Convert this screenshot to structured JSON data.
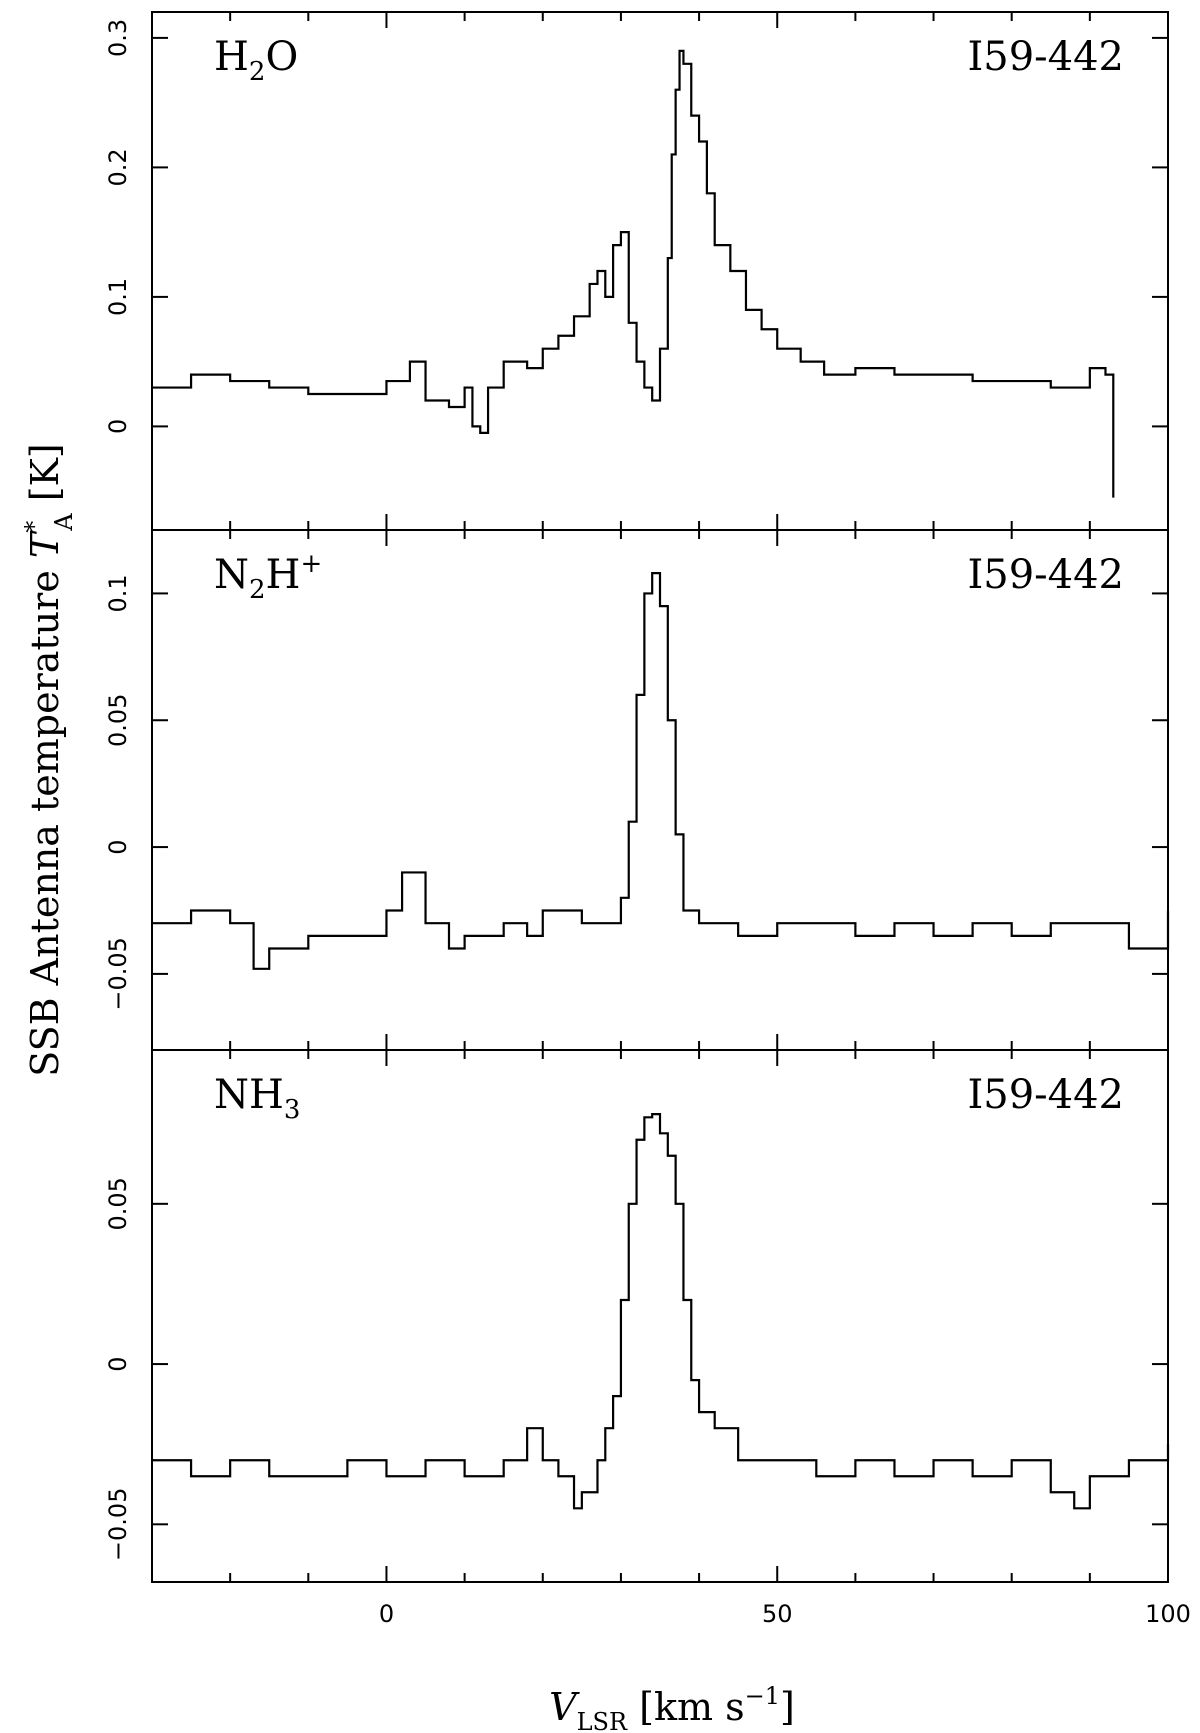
{
  "figure": {
    "ylabel_text": "SSB Antenna temperature ",
    "ylabel_symbol": "T",
    "ylabel_sup": "*",
    "ylabel_sub": "A",
    "ylabel_unit": " [K]",
    "xlabel_symbol": "V",
    "xlabel_sub": "LSR",
    "xlabel_unit_pre": " [km s",
    "xlabel_unit_sup": "−1",
    "xlabel_unit_post": "]"
  },
  "chart_data": [
    {
      "type": "line",
      "species_main": "H",
      "species_sub": "2",
      "species_tail": "O",
      "species_sup": "",
      "source": "I59-442",
      "xlim": [
        -30,
        100
      ],
      "ylim": [
        -0.08,
        0.32
      ],
      "yticks": [
        0,
        0.1,
        0.2,
        0.3
      ],
      "ytick_labels": [
        "0",
        "0.1",
        "0.2",
        "0.3"
      ],
      "x": [
        -30,
        -25,
        -20,
        -15,
        -10,
        -5,
        0,
        3,
        5,
        8,
        10,
        11,
        12,
        13,
        15,
        18,
        20,
        22,
        24,
        26,
        27,
        28,
        29,
        30,
        31,
        32,
        33,
        34,
        35,
        36,
        36.5,
        37,
        37.5,
        38,
        39,
        40,
        41,
        42,
        44,
        46,
        48,
        50,
        53,
        56,
        60,
        65,
        70,
        75,
        80,
        85,
        90,
        92,
        93
      ],
      "values": [
        0.03,
        0.04,
        0.035,
        0.03,
        0.025,
        0.025,
        0.035,
        0.05,
        0.02,
        0.015,
        0.03,
        0.0,
        -0.005,
        0.03,
        0.05,
        0.045,
        0.06,
        0.07,
        0.085,
        0.11,
        0.12,
        0.1,
        0.14,
        0.15,
        0.08,
        0.05,
        0.03,
        0.02,
        0.06,
        0.13,
        0.21,
        0.26,
        0.29,
        0.28,
        0.24,
        0.22,
        0.18,
        0.14,
        0.12,
        0.09,
        0.075,
        0.06,
        0.05,
        0.04,
        0.045,
        0.04,
        0.04,
        0.035,
        0.035,
        0.03,
        0.045,
        0.04,
        -0.055
      ]
    },
    {
      "type": "line",
      "species_main": "N",
      "species_sub": "2",
      "species_tail": "H",
      "species_sup": "+",
      "source": "I59-442",
      "xlim": [
        -30,
        100
      ],
      "ylim": [
        -0.08,
        0.125
      ],
      "yticks": [
        -0.05,
        0,
        0.05,
        0.1
      ],
      "ytick_labels": [
        "−0.05",
        "0",
        "0.05",
        "0.1"
      ],
      "x": [
        -30,
        -25,
        -20,
        -17,
        -15,
        -10,
        -5,
        0,
        2,
        5,
        8,
        10,
        15,
        18,
        20,
        25,
        28,
        30,
        31,
        32,
        33,
        34,
        35,
        36,
        37,
        38,
        40,
        45,
        50,
        55,
        60,
        65,
        70,
        75,
        80,
        85,
        90,
        95,
        100
      ],
      "values": [
        -0.03,
        -0.025,
        -0.03,
        -0.048,
        -0.04,
        -0.035,
        -0.035,
        -0.025,
        -0.01,
        -0.03,
        -0.04,
        -0.035,
        -0.03,
        -0.035,
        -0.025,
        -0.03,
        -0.03,
        -0.02,
        0.01,
        0.06,
        0.1,
        0.108,
        0.095,
        0.05,
        0.005,
        -0.025,
        -0.03,
        -0.035,
        -0.03,
        -0.03,
        -0.035,
        -0.03,
        -0.035,
        -0.03,
        -0.035,
        -0.03,
        -0.03,
        -0.04,
        -0.025
      ]
    },
    {
      "type": "line",
      "species_main": "NH",
      "species_sub": "3",
      "species_tail": "",
      "species_sup": "",
      "source": "I59-442",
      "xlim": [
        -30,
        100
      ],
      "ylim": [
        -0.068,
        0.098
      ],
      "yticks": [
        -0.05,
        0,
        0.05
      ],
      "ytick_labels": [
        "−0.05",
        "0",
        "0.05"
      ],
      "x": [
        -30,
        -25,
        -20,
        -15,
        -10,
        -5,
        0,
        5,
        10,
        15,
        18,
        20,
        22,
        24,
        25,
        27,
        28,
        29,
        30,
        31,
        32,
        33,
        34,
        35,
        36,
        37,
        38,
        39,
        40,
        42,
        45,
        50,
        55,
        60,
        65,
        70,
        75,
        80,
        85,
        88,
        90,
        95,
        100
      ],
      "values": [
        -0.03,
        -0.035,
        -0.03,
        -0.035,
        -0.035,
        -0.03,
        -0.035,
        -0.03,
        -0.035,
        -0.03,
        -0.02,
        -0.03,
        -0.035,
        -0.045,
        -0.04,
        -0.03,
        -0.02,
        -0.01,
        0.02,
        0.05,
        0.07,
        0.077,
        0.078,
        0.072,
        0.065,
        0.05,
        0.02,
        -0.005,
        -0.015,
        -0.02,
        -0.03,
        -0.03,
        -0.035,
        -0.03,
        -0.035,
        -0.03,
        -0.035,
        -0.03,
        -0.04,
        -0.045,
        -0.035,
        -0.03,
        -0.025
      ]
    }
  ]
}
